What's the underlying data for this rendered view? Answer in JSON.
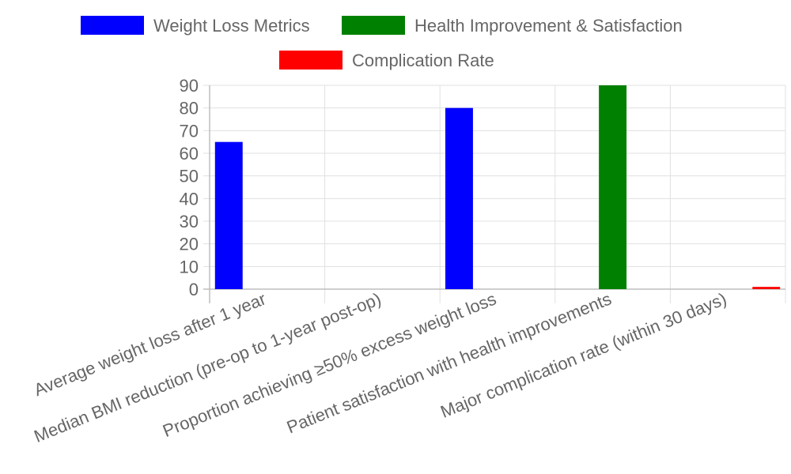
{
  "chart_data": {
    "type": "bar",
    "categories": [
      "Average weight loss after 1 year",
      "Median BMI reduction (pre-op to 1-year post-op)",
      "Proportion achieving ≥50% excess weight loss",
      "Patient satisfaction with health improvements",
      "Major complication rate (within 30 days)"
    ],
    "series": [
      {
        "name": "Weight Loss Metrics",
        "color": "#0000ff",
        "values": [
          65,
          null,
          80,
          null,
          null
        ]
      },
      {
        "name": "Health Improvement & Satisfaction",
        "color": "#008000",
        "values": [
          null,
          null,
          null,
          90,
          null
        ]
      },
      {
        "name": "Complication Rate",
        "color": "#ff0000",
        "values": [
          null,
          null,
          null,
          null,
          1
        ]
      }
    ],
    "ylim": [
      0,
      90
    ],
    "yticks": [
      0,
      10,
      20,
      30,
      40,
      50,
      60,
      70,
      80,
      90
    ],
    "grid": true,
    "legend_position": "top"
  }
}
